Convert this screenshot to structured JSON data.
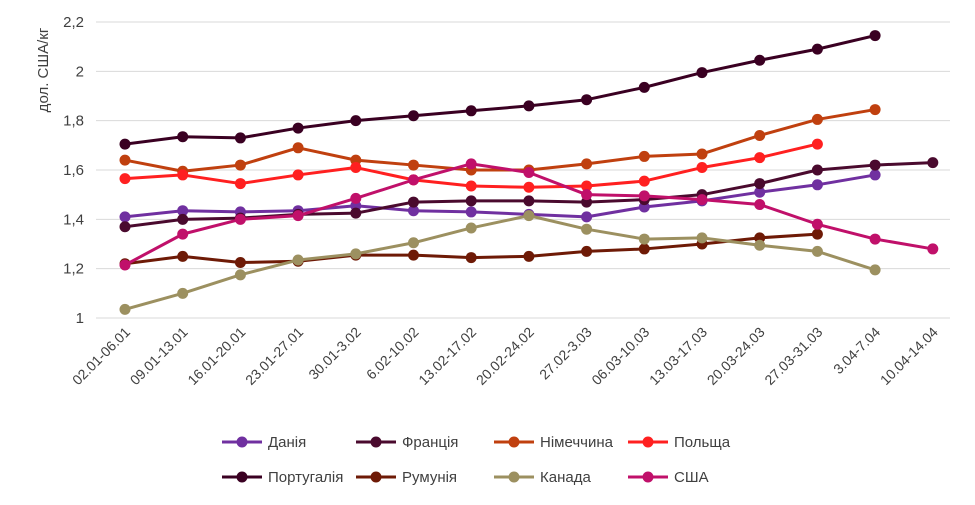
{
  "chart_data": {
    "type": "line",
    "title": "",
    "xlabel": "",
    "ylabel": "дол. США/кг",
    "ylim": [
      1,
      2.2
    ],
    "yticks": [
      "1",
      "1,2",
      "1,4",
      "1,6",
      "1,8",
      "2",
      "2,2"
    ],
    "grid": "horizontal",
    "legend": "bottom",
    "categories": [
      "02.01-06.01",
      "09.01-13.01",
      "16.01-20.01",
      "23.01-27.01",
      "30.01-3.02",
      "6.02-10.02",
      "13.02-17.02",
      "20.02-24.02",
      "27.02-3.03",
      "06.03-10.03",
      "13.03-17.03",
      "20.03-24.03",
      "27.03-31.03",
      "3.04-7.04",
      "10.04-14.04"
    ],
    "series": [
      {
        "name": "Данія",
        "color": "#7030A0",
        "values": [
          1.41,
          1.435,
          1.43,
          1.435,
          1.455,
          1.435,
          1.43,
          1.42,
          1.41,
          1.45,
          1.475,
          1.51,
          1.54,
          1.58,
          null
        ]
      },
      {
        "name": "Франція",
        "color": "#4A0A2E",
        "values": [
          1.37,
          1.4,
          1.405,
          1.42,
          1.425,
          1.47,
          1.475,
          1.475,
          1.47,
          1.48,
          1.5,
          1.545,
          1.6,
          1.62,
          1.63
        ]
      },
      {
        "name": "Німеччина",
        "color": "#C0400F",
        "values": [
          1.64,
          1.595,
          1.62,
          1.69,
          1.64,
          1.62,
          1.6,
          1.6,
          1.625,
          1.655,
          1.665,
          1.74,
          1.805,
          1.845,
          null
        ]
      },
      {
        "name": "Польща",
        "color": "#FF2020",
        "values": [
          1.565,
          1.58,
          1.545,
          1.58,
          1.61,
          1.56,
          1.535,
          1.53,
          1.535,
          1.555,
          1.61,
          1.65,
          1.705,
          null,
          null
        ]
      },
      {
        "name": "Португалія",
        "color": "#3A0022",
        "values": [
          1.705,
          1.735,
          1.73,
          1.77,
          1.8,
          1.82,
          1.84,
          1.86,
          1.885,
          1.935,
          1.995,
          2.045,
          2.09,
          2.145,
          null
        ]
      },
      {
        "name": "Румунія",
        "color": "#6E1A06",
        "values": [
          1.22,
          1.25,
          1.225,
          1.23,
          1.255,
          1.255,
          1.245,
          1.25,
          1.27,
          1.28,
          1.3,
          1.325,
          1.34,
          null,
          null
        ]
      },
      {
        "name": "Канада",
        "color": "#9C9060",
        "values": [
          1.035,
          1.1,
          1.175,
          1.235,
          1.26,
          1.305,
          1.365,
          1.415,
          1.36,
          1.32,
          1.325,
          1.295,
          1.27,
          1.195,
          null
        ]
      },
      {
        "name": "США",
        "color": "#C0106A",
        "values": [
          1.215,
          1.34,
          1.4,
          1.415,
          1.485,
          1.56,
          1.625,
          1.59,
          1.5,
          1.495,
          1.48,
          1.46,
          1.38,
          1.32,
          1.28
        ]
      }
    ]
  }
}
